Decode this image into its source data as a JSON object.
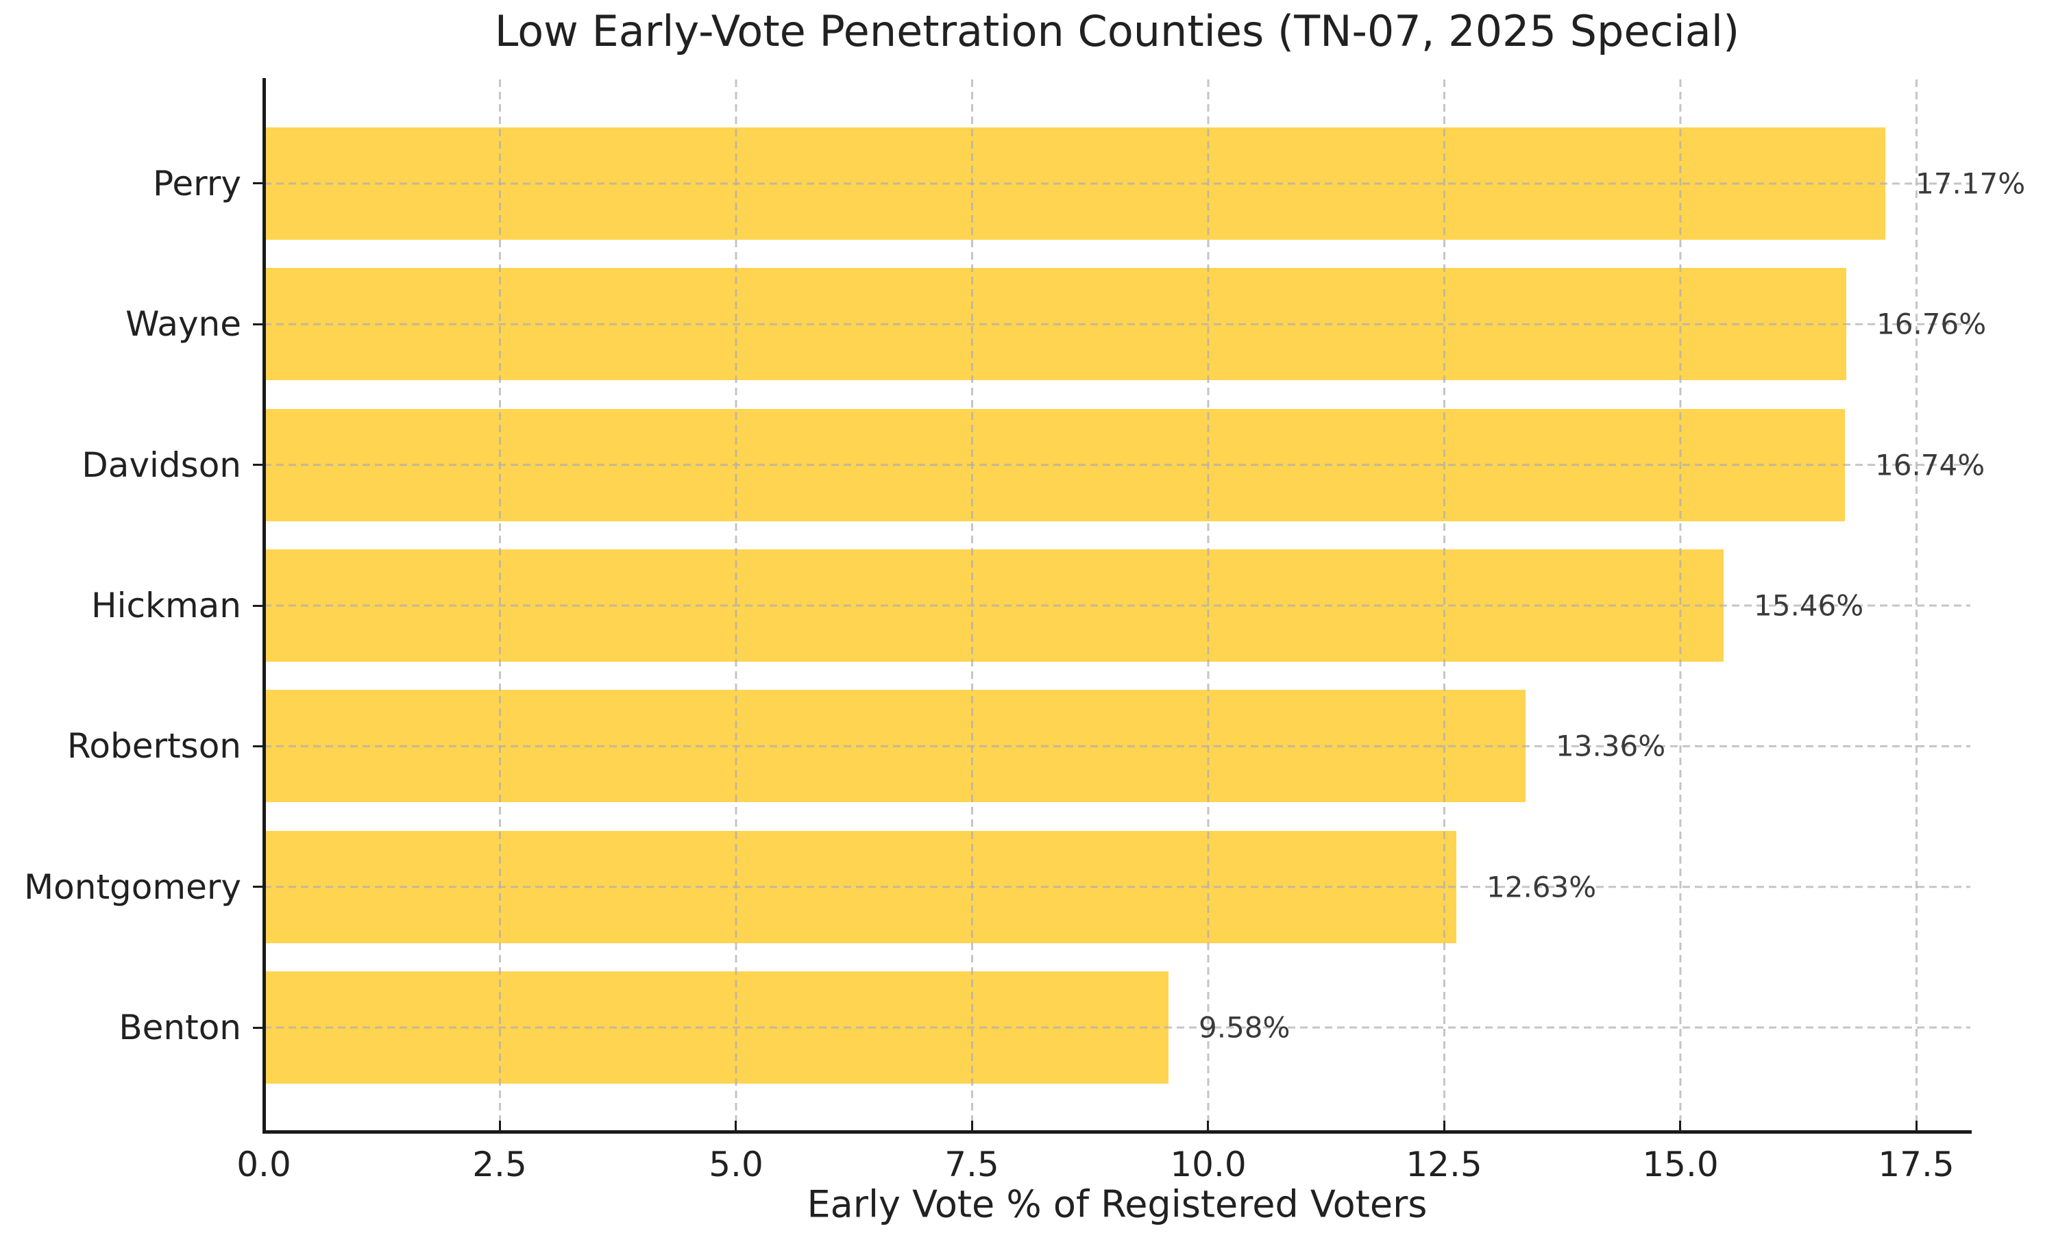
{
  "figure": {
    "background": "#ffffff"
  },
  "chart_data": {
    "type": "bar",
    "orientation": "horizontal",
    "title": "Low Early-Vote Penetration Counties (TN-07, 2025 Special)",
    "xlabel": "Early Vote % of Registered Voters",
    "ylabel": "",
    "categories": [
      "Perry",
      "Wayne",
      "Davidson",
      "Hickman",
      "Robertson",
      "Montgomery",
      "Benton"
    ],
    "values": [
      17.17,
      16.76,
      16.74,
      15.46,
      13.36,
      12.63,
      9.58
    ],
    "bar_labels": [
      "17.17%",
      "16.76%",
      "16.74%",
      "15.46%",
      "13.36%",
      "12.63%",
      "9.58%"
    ],
    "xticks": [
      0.0,
      2.5,
      5.0,
      7.5,
      10.0,
      12.5,
      15.0,
      17.5
    ],
    "xtick_labels": [
      "0.0",
      "2.5",
      "5.0",
      "7.5",
      "10.0",
      "12.5",
      "15.0",
      "17.5"
    ],
    "xlim": [
      0,
      18.07
    ],
    "grid": {
      "visible": true,
      "style": "dashed",
      "axes": "both",
      "drawn_over_bars": true
    },
    "legend_position": "none",
    "colors": {
      "bar": "#FFD451",
      "grid": "#b0b0b0",
      "title_text": "#212121",
      "tick_text": "#212121",
      "value_label_text": "#3a3a3a",
      "axis": "#1a1a1a",
      "background": "#ffffff"
    }
  }
}
